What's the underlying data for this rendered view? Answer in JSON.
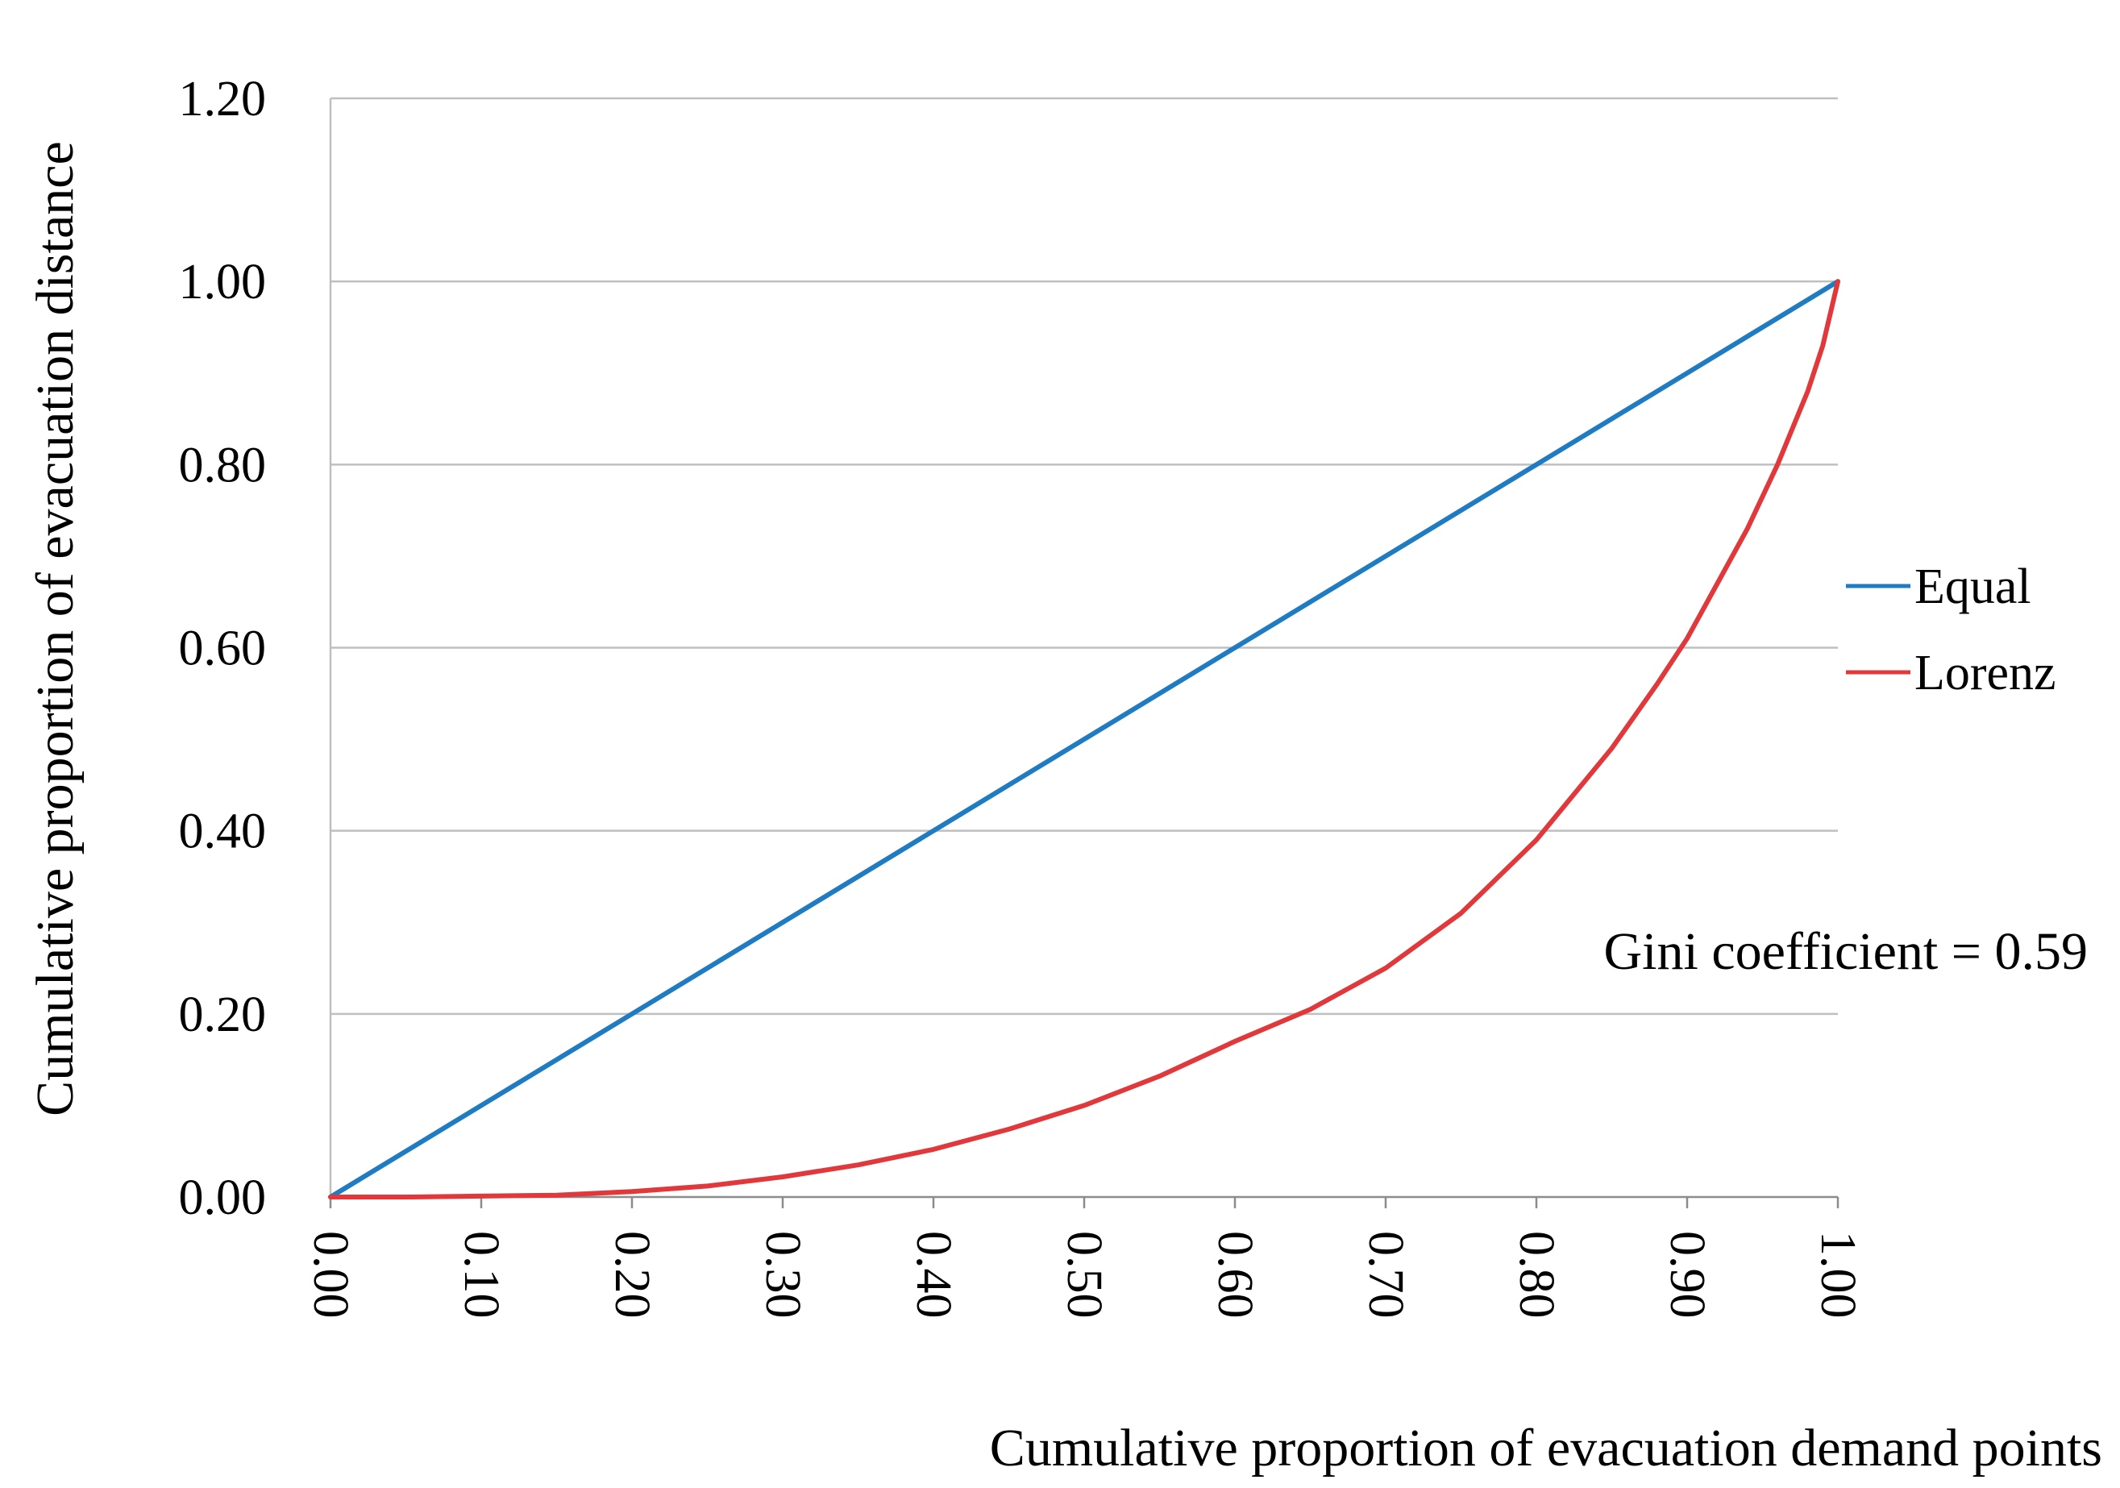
{
  "chart_data": {
    "type": "line",
    "title": "",
    "xlabel": "Cumulative proportion of evacuation demand points",
    "ylabel": "Cumulative proportion of evacuation distance",
    "xlim": [
      0,
      1
    ],
    "ylim": [
      0,
      1.2
    ],
    "x_ticks": [
      "0.00",
      "0.10",
      "0.20",
      "0.30",
      "0.40",
      "0.50",
      "0.60",
      "0.70",
      "0.80",
      "0.90",
      "1.00"
    ],
    "x_tick_values": [
      0,
      0.1,
      0.2,
      0.3,
      0.4,
      0.5,
      0.6,
      0.7,
      0.8,
      0.9,
      1.0
    ],
    "y_ticks": [
      "0.00",
      "0.20",
      "0.40",
      "0.60",
      "0.80",
      "1.00",
      "1.20"
    ],
    "y_tick_values": [
      0,
      0.2,
      0.4,
      0.6,
      0.8,
      1.0,
      1.2
    ],
    "grid": "horizontal",
    "legend_position": "right",
    "series": [
      {
        "name": "Equal",
        "color": "#1f7bc2",
        "x": [
          0,
          1
        ],
        "y": [
          0,
          1
        ]
      },
      {
        "name": "Lorenz",
        "color": "#e0383b",
        "x": [
          0,
          0.05,
          0.1,
          0.15,
          0.2,
          0.25,
          0.3,
          0.35,
          0.4,
          0.45,
          0.5,
          0.55,
          0.6,
          0.65,
          0.7,
          0.75,
          0.8,
          0.85,
          0.88,
          0.9,
          0.92,
          0.94,
          0.96,
          0.98,
          0.99,
          1.0
        ],
        "y": [
          0,
          0.0,
          0.001,
          0.002,
          0.006,
          0.012,
          0.022,
          0.035,
          0.052,
          0.074,
          0.1,
          0.132,
          0.17,
          0.205,
          0.25,
          0.31,
          0.39,
          0.49,
          0.56,
          0.61,
          0.67,
          0.73,
          0.8,
          0.88,
          0.93,
          1.0
        ]
      }
    ],
    "annotations": [
      {
        "text": "Gini coefficient = 0.59"
      }
    ]
  }
}
